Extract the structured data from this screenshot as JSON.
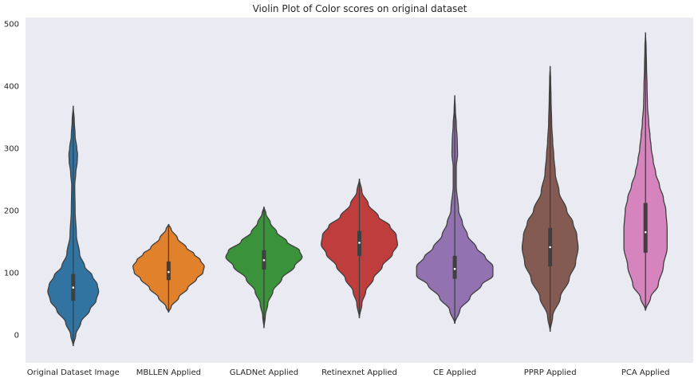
{
  "chart_data": {
    "type": "violin",
    "title": "Violin Plot of Color scores on original dataset",
    "xlabel": "",
    "ylabel": "",
    "ylim": [
      -45,
      510
    ],
    "yticks": [
      0,
      100,
      200,
      300,
      400,
      500
    ],
    "grid": false,
    "legend": "none",
    "background": "#eaeaf2",
    "categories": [
      "Original Dataset Image",
      "MBLLEN Applied",
      "GLADNet Applied",
      "Retinexnet Applied",
      "CE Applied",
      "PPRP Applied",
      "PCA Applied"
    ],
    "series": [
      {
        "color": "#3274a1",
        "min": -18,
        "max": 368,
        "q1": 55,
        "median": 76,
        "q3": 98,
        "density": [
          [
            -18,
            0
          ],
          [
            0,
            2
          ],
          [
            20,
            6
          ],
          [
            40,
            13
          ],
          [
            55,
            18
          ],
          [
            70,
            20
          ],
          [
            80,
            19
          ],
          [
            95,
            15
          ],
          [
            110,
            9
          ],
          [
            130,
            5
          ],
          [
            160,
            2.5
          ],
          [
            200,
            1.5
          ],
          [
            240,
            1.2
          ],
          [
            260,
            2
          ],
          [
            280,
            3.2
          ],
          [
            290,
            3.4
          ],
          [
            300,
            2.8
          ],
          [
            320,
            1.5
          ],
          [
            345,
            0.8
          ],
          [
            368,
            0
          ]
        ]
      },
      {
        "color": "#e1812c",
        "min": 36,
        "max": 178,
        "q1": 88,
        "median": 101,
        "q3": 118,
        "density": [
          [
            36,
            0
          ],
          [
            45,
            2
          ],
          [
            60,
            8
          ],
          [
            75,
            15
          ],
          [
            90,
            22
          ],
          [
            100,
            27
          ],
          [
            110,
            28
          ],
          [
            120,
            25
          ],
          [
            130,
            20
          ],
          [
            140,
            14
          ],
          [
            155,
            7
          ],
          [
            170,
            2
          ],
          [
            178,
            0
          ]
        ]
      },
      {
        "color": "#3a923a",
        "min": 11,
        "max": 206,
        "q1": 105,
        "median": 120,
        "q3": 136,
        "density": [
          [
            11,
            0
          ],
          [
            30,
            1
          ],
          [
            50,
            3
          ],
          [
            70,
            7
          ],
          [
            90,
            14
          ],
          [
            110,
            24
          ],
          [
            125,
            30
          ],
          [
            135,
            28
          ],
          [
            150,
            18
          ],
          [
            165,
            10
          ],
          [
            180,
            5
          ],
          [
            195,
            1.5
          ],
          [
            206,
            0
          ]
        ]
      },
      {
        "color": "#c03d3e",
        "min": 27,
        "max": 251,
        "q1": 127,
        "median": 148,
        "q3": 167,
        "density": [
          [
            27,
            0
          ],
          [
            50,
            2
          ],
          [
            70,
            5
          ],
          [
            90,
            11
          ],
          [
            110,
            18
          ],
          [
            130,
            26
          ],
          [
            145,
            30
          ],
          [
            160,
            29
          ],
          [
            175,
            24
          ],
          [
            190,
            15
          ],
          [
            210,
            7
          ],
          [
            230,
            2
          ],
          [
            251,
            0
          ]
        ]
      },
      {
        "color": "#9372b2",
        "min": 18,
        "max": 385,
        "q1": 90,
        "median": 106,
        "q3": 127,
        "density": [
          [
            18,
            0
          ],
          [
            40,
            4
          ],
          [
            60,
            12
          ],
          [
            80,
            21
          ],
          [
            95,
            30
          ],
          [
            110,
            30
          ],
          [
            125,
            24
          ],
          [
            140,
            17
          ],
          [
            160,
            10
          ],
          [
            180,
            6
          ],
          [
            200,
            3
          ],
          [
            240,
            1.2
          ],
          [
            270,
            1.2
          ],
          [
            290,
            2.2
          ],
          [
            310,
            2
          ],
          [
            340,
            1.2
          ],
          [
            360,
            0.5
          ],
          [
            385,
            0
          ]
        ]
      },
      {
        "color": "#845b53",
        "min": 5,
        "max": 432,
        "q1": 110,
        "median": 141,
        "q3": 172,
        "density": [
          [
            5,
            0
          ],
          [
            30,
            2
          ],
          [
            60,
            8
          ],
          [
            90,
            15
          ],
          [
            115,
            20
          ],
          [
            140,
            22
          ],
          [
            160,
            21
          ],
          [
            180,
            18
          ],
          [
            200,
            13
          ],
          [
            230,
            7
          ],
          [
            260,
            4
          ],
          [
            290,
            2.8
          ],
          [
            310,
            2
          ],
          [
            340,
            1.2
          ],
          [
            380,
            0.7
          ],
          [
            410,
            0.4
          ],
          [
            432,
            0
          ]
        ]
      },
      {
        "color": "#d684bd",
        "min": 39,
        "max": 486,
        "q1": 132,
        "median": 165,
        "q3": 212,
        "density": [
          [
            39,
            0
          ],
          [
            60,
            4
          ],
          [
            80,
            10
          ],
          [
            110,
            14
          ],
          [
            140,
            17
          ],
          [
            170,
            17
          ],
          [
            200,
            16
          ],
          [
            220,
            14
          ],
          [
            240,
            11
          ],
          [
            260,
            8
          ],
          [
            280,
            6
          ],
          [
            300,
            4.5
          ],
          [
            320,
            3.5
          ],
          [
            340,
            2.5
          ],
          [
            370,
            1.5
          ],
          [
            400,
            1.2
          ],
          [
            430,
            0.8
          ],
          [
            460,
            0.5
          ],
          [
            486,
            0
          ]
        ]
      }
    ]
  }
}
